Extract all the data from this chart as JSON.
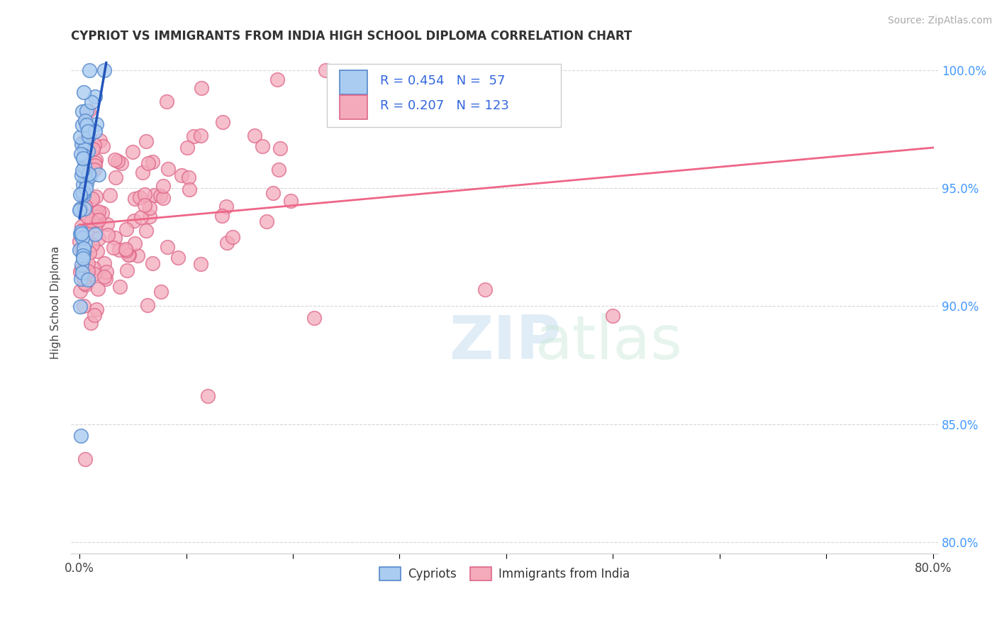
{
  "title": "CYPRIOT VS IMMIGRANTS FROM INDIA HIGH SCHOOL DIPLOMA CORRELATION CHART",
  "source": "Source: ZipAtlas.com",
  "ylabel": "High School Diploma",
  "xmin": 0.0,
  "xmax": 0.8,
  "ymin": 0.795,
  "ymax": 1.008,
  "yticks": [
    0.8,
    0.85,
    0.9,
    0.95,
    1.0
  ],
  "yticklabels": [
    "80.0%",
    "85.0%",
    "90.0%",
    "95.0%",
    "100.0%"
  ],
  "cypriot_color": "#aaccf0",
  "india_color": "#f4aabb",
  "cypriot_edge": "#5588cc",
  "india_edge": "#dd6688",
  "cypriot_line_color": "#2255bb",
  "india_line_color": "#ee6688",
  "R_cypriot": 0.454,
  "N_cypriot": 57,
  "R_india": 0.207,
  "N_india": 123,
  "legend_entries": [
    "Cypriots",
    "Immigrants from India"
  ]
}
